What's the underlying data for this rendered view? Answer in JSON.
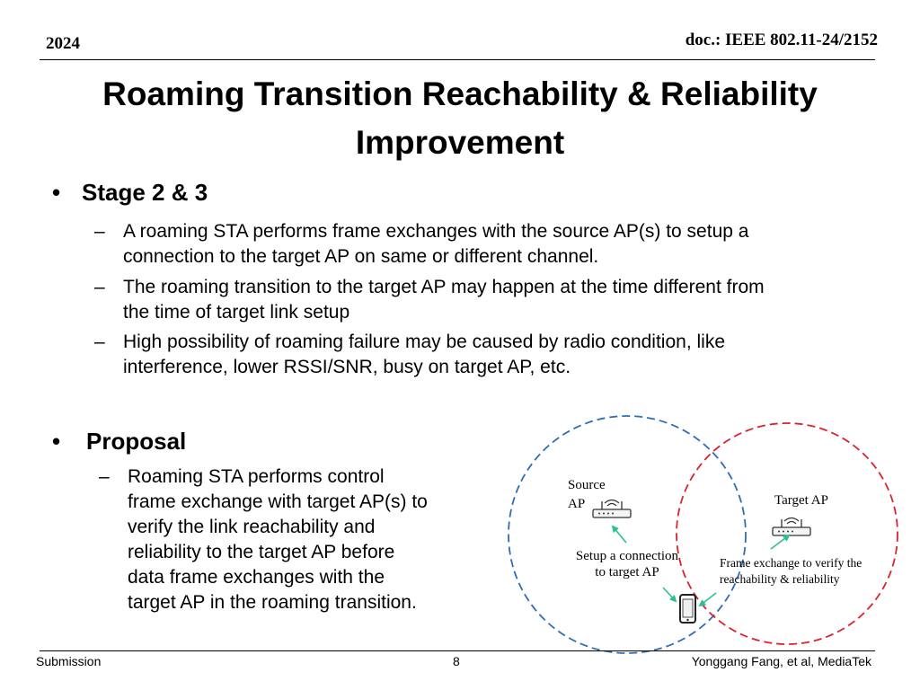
{
  "header": {
    "year": "2024",
    "doc": "doc.: IEEE 802.11-24/2152"
  },
  "title": {
    "line1": "Roaming Transition Reachability & Reliability",
    "line2": "Improvement"
  },
  "stage": {
    "bullet": "•",
    "heading": "Stage 2 & 3",
    "items": [
      {
        "dash": "–",
        "line1": "A roaming STA performs frame exchanges with the source AP(s) to setup a",
        "line2": "connection to the target AP on same or different channel."
      },
      {
        "dash": "–",
        "line1": "The roaming transition to the target AP may happen at the time different from",
        "line2": "the time of target link setup"
      },
      {
        "dash": "–",
        "line1": "High possibility of roaming failure may be caused by radio condition, like",
        "line2": "interference, lower RSSI/SNR, busy on target AP, etc."
      }
    ]
  },
  "proposal": {
    "bullet": "•",
    "heading": "Proposal",
    "dash": "–",
    "lines": [
      "Roaming STA performs control",
      "frame exchange with target AP(s) to",
      "verify the link reachability and",
      "reliability to the target AP before",
      "data frame exchanges with the",
      "target AP in the roaming transition."
    ]
  },
  "diagram": {
    "source_label_1": "Source",
    "source_label_2": "AP",
    "target_label": "Target AP",
    "setup_1": "Setup a connection",
    "setup_2": "to target AP",
    "frame_1": "Frame exchange to verify the",
    "frame_2": "reachability & reliability",
    "source_circle_color": "#2f6db5",
    "target_circle_color": "#d9232d",
    "arrow_color": "#2bbf94",
    "icons": [
      "router-icon",
      "router-icon",
      "smartphone-icon"
    ]
  },
  "footer": {
    "left": "Submission",
    "center": "8",
    "right": "Yonggang Fang, et al, MediaTek"
  }
}
